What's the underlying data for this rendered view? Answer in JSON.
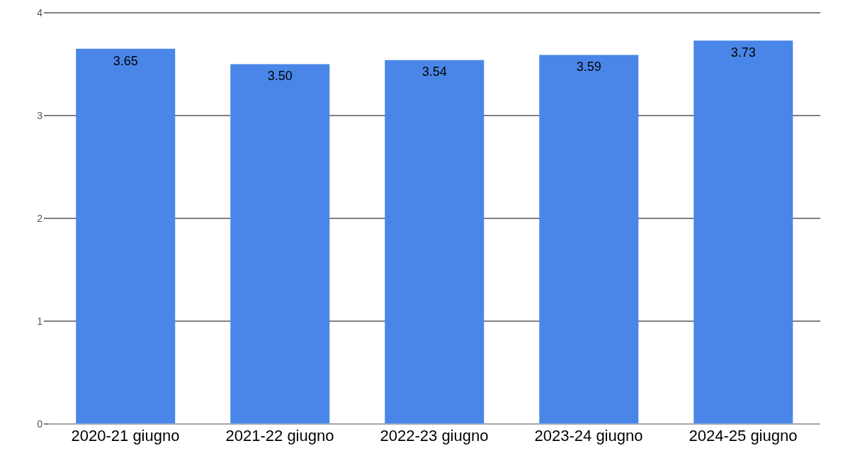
{
  "chart_data": {
    "type": "bar",
    "categories": [
      "2020-21 giugno",
      "2021-22 giugno",
      "2022-23 giugno",
      "2023-24 giugno",
      "2024-25 giugno"
    ],
    "values": [
      3.65,
      3.5,
      3.54,
      3.59,
      3.73
    ],
    "color": "#4a86e8",
    "ylim": [
      0,
      4
    ],
    "yticks": [
      0,
      1,
      2,
      3,
      4
    ],
    "value_labels": [
      "3.65",
      "3.50",
      "3.54",
      "3.59",
      "3.73"
    ],
    "grid": "y"
  }
}
